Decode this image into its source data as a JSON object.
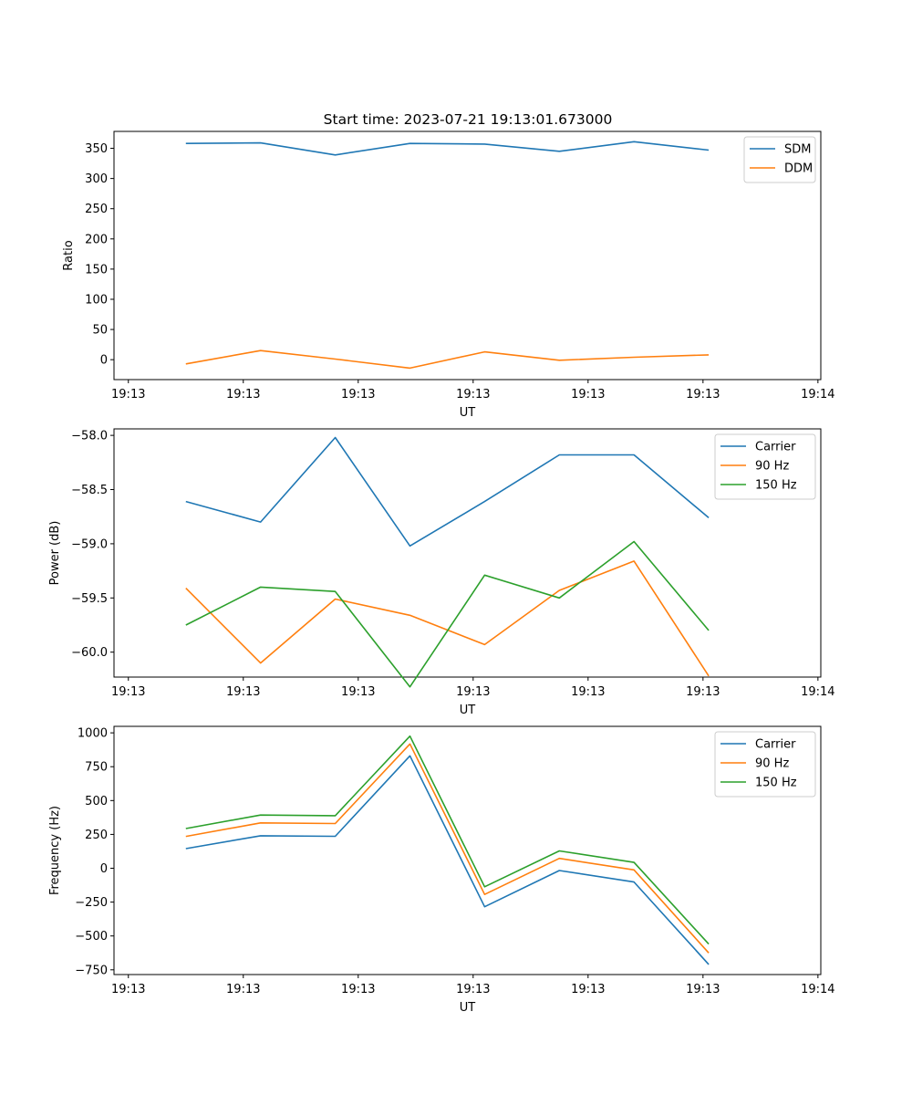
{
  "figure": {
    "title": "Start time: 2023-07-21 19:13:01.673000"
  },
  "chart_data": [
    {
      "type": "line",
      "title": "Start time: 2023-07-21 19:13:01.673000",
      "xlabel": "UT",
      "ylabel": "Ratio",
      "x_tick_labels": [
        "19:13",
        "19:13",
        "19:13",
        "19:13",
        "19:13",
        "19:13",
        "19:14"
      ],
      "x_ticks": [
        0,
        2,
        4,
        6,
        8,
        10,
        12
      ],
      "xlim": [
        -0.25,
        12.05
      ],
      "x": [
        1,
        2.3,
        3.6,
        4.9,
        6.2,
        7.5,
        8.8,
        10.1
      ],
      "ylim": [
        -33,
        378
      ],
      "y_ticks": [
        0,
        50,
        100,
        150,
        200,
        250,
        300,
        350
      ],
      "grid": false,
      "legend_position": "top-right",
      "series": [
        {
          "name": "SDM",
          "color": "#1f77b4",
          "values": [
            358,
            359,
            339,
            358,
            357,
            345,
            361,
            347
          ]
        },
        {
          "name": "DDM",
          "color": "#ff7f0e",
          "values": [
            -7,
            15,
            1,
            -14,
            13,
            -1,
            4,
            8
          ]
        }
      ]
    },
    {
      "type": "line",
      "title": "",
      "xlabel": "UT",
      "ylabel": "Power (dB)",
      "x_tick_labels": [
        "19:13",
        "19:13",
        "19:13",
        "19:13",
        "19:13",
        "19:13",
        "19:14"
      ],
      "x_ticks": [
        0,
        2,
        4,
        6,
        8,
        10,
        12
      ],
      "xlim": [
        -0.25,
        12.05
      ],
      "x": [
        1,
        2.3,
        3.6,
        4.9,
        6.2,
        7.5,
        8.8,
        10.1
      ],
      "ylim": [
        -60.23,
        -57.94
      ],
      "y_ticks": [
        -60.0,
        -59.5,
        -59.0,
        -58.5,
        -58.0
      ],
      "y_tick_labels": [
        "−60.0",
        "−59.5",
        "−59.0",
        "−58.5",
        "−58.0"
      ],
      "grid": false,
      "legend_position": "top-right",
      "series": [
        {
          "name": "Carrier",
          "color": "#1f77b4",
          "values": [
            -58.61,
            -58.8,
            -58.02,
            -59.02,
            -58.61,
            -58.18,
            -58.18,
            -58.76
          ]
        },
        {
          "name": "90 Hz",
          "color": "#ff7f0e",
          "values": [
            -59.41,
            -60.1,
            -59.51,
            -59.66,
            -59.93,
            -59.43,
            -59.16,
            -60.22
          ]
        },
        {
          "name": "150 Hz",
          "color": "#2ca02c",
          "values": [
            -59.75,
            -59.4,
            -59.44,
            -60.32,
            -59.29,
            -59.5,
            -58.98,
            -59.8
          ]
        }
      ]
    },
    {
      "type": "line",
      "title": "",
      "xlabel": "UT",
      "ylabel": "Frequency (Hz)",
      "x_tick_labels": [
        "19:13",
        "19:13",
        "19:13",
        "19:13",
        "19:13",
        "19:13",
        "19:14"
      ],
      "x_ticks": [
        0,
        2,
        4,
        6,
        8,
        10,
        12
      ],
      "xlim": [
        -0.25,
        12.05
      ],
      "x": [
        1,
        2.3,
        3.6,
        4.9,
        6.2,
        7.5,
        8.8,
        10.1
      ],
      "ylim": [
        -785,
        1048
      ],
      "y_ticks": [
        -750,
        -500,
        -250,
        0,
        250,
        500,
        750,
        1000
      ],
      "y_tick_labels": [
        "−750",
        "−500",
        "−250",
        "0",
        "250",
        "500",
        "750",
        "1000"
      ],
      "grid": false,
      "legend_position": "top-right",
      "series": [
        {
          "name": "Carrier",
          "color": "#1f77b4",
          "values": [
            145,
            240,
            236,
            830,
            -284,
            -17,
            -102,
            -710
          ]
        },
        {
          "name": "90 Hz",
          "color": "#ff7f0e",
          "values": [
            235,
            335,
            330,
            918,
            -193,
            73,
            -12,
            -625
          ]
        },
        {
          "name": "150 Hz",
          "color": "#2ca02c",
          "values": [
            293,
            393,
            388,
            976,
            -137,
            128,
            43,
            -560
          ]
        }
      ]
    }
  ]
}
